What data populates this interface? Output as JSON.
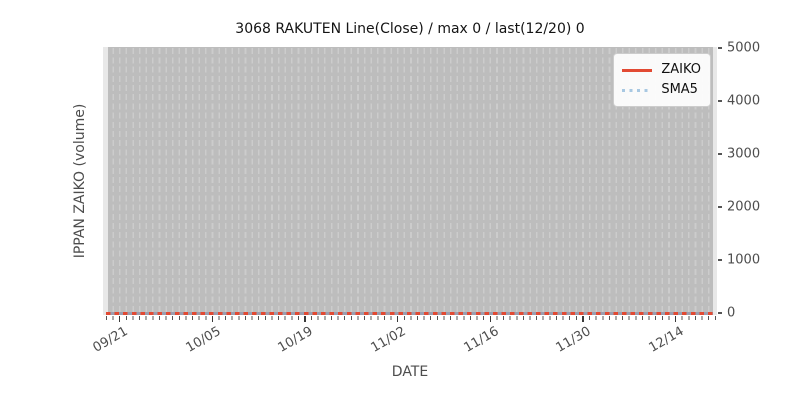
{
  "title": "3068 RAKUTEN Line(Close) / max 0 / last(12/20) 0",
  "axes": {
    "xlabel": "DATE",
    "ylabel": "IPPAN ZAIKO (volume)",
    "x_ticks": [
      "09/21",
      "10/05",
      "10/19",
      "11/02",
      "11/16",
      "11/30",
      "12/14"
    ],
    "y_ticks": [
      "0",
      "1000",
      "2000",
      "3000",
      "4000",
      "5000"
    ]
  },
  "legend": {
    "position": "upper right",
    "items": [
      {
        "label": "ZAIKO",
        "color": "#e24a33",
        "line_style": "solid"
      },
      {
        "label": "SMA5",
        "color": "#a8c8e2",
        "line_style": "dotted"
      }
    ]
  },
  "colors": {
    "figure_background": "#ffffff",
    "plot_background": "#bdbdbd",
    "gridline": "#cccccc",
    "axes_margin": "#e8e8e8",
    "zaiko_line": "#e24a33",
    "sma5_line": "#a8c8e2",
    "tick_label": "#4d4d4d"
  },
  "chart_data": {
    "type": "line",
    "title": "3068 RAKUTEN Line(Close) / max 0 / last(12/20) 0",
    "xlabel": "DATE",
    "ylabel": "IPPAN ZAIKO (volume)",
    "x_tick_labels": [
      "09/21",
      "10/05",
      "10/19",
      "11/02",
      "11/16",
      "11/30",
      "12/14"
    ],
    "x_frequency": "daily",
    "x_range_approx": [
      "09/19",
      "12/20"
    ],
    "ylim": [
      0,
      5000
    ],
    "y_tick_values": [
      0,
      1000,
      2000,
      3000,
      4000,
      5000
    ],
    "grid": "vertical dashed daily gridlines on gray panel, no horizontal gridlines",
    "legend_position": "upper right",
    "series": [
      {
        "name": "ZAIKO",
        "line_style": "solid",
        "color": "#e24a33",
        "constant_value": 0
      },
      {
        "name": "SMA5",
        "line_style": "dotted",
        "color": "#a8c8e2",
        "constant_value": 0
      }
    ],
    "annotations": {
      "max": 0,
      "last_date": "12/20",
      "last_value": 0
    }
  }
}
